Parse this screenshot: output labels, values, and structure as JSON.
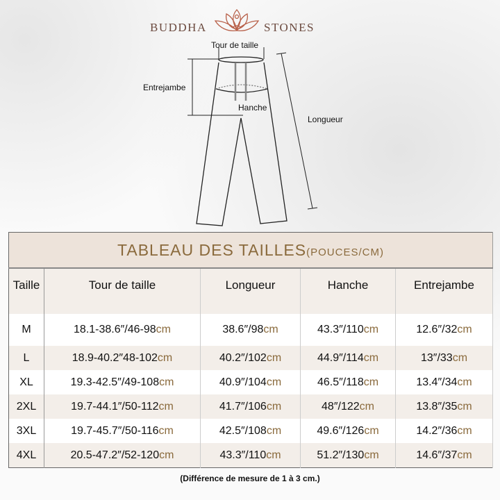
{
  "logo": {
    "left": "BUDDHA",
    "right": "STONES"
  },
  "diagram": {
    "waist": "Tour de taille",
    "inseam": "Entrejambe",
    "hip": "Hanche",
    "length": "Longueur"
  },
  "table": {
    "title": "TABLEAU DES TAILLES",
    "unit": "(POUCES/CM)",
    "headers": [
      "Taille",
      "Tour de taille",
      "Longueur",
      "Hanche",
      "Entrejambe"
    ],
    "unit_suffix": "cm",
    "rows": [
      [
        "M",
        "18.1-38.6″/46-98",
        "38.6″/98",
        "43.3″/110",
        "12.6″/32"
      ],
      [
        "L",
        "18.9-40.2″48-102",
        "40.2″/102",
        "44.9″/114",
        "13″/33"
      ],
      [
        "XL",
        "19.3-42.5″/49-108",
        "40.9″/104",
        "46.5″/118",
        "13.4″/34"
      ],
      [
        "2XL",
        "19.7-44.1″/50-112",
        "41.7″/106",
        "48″/122",
        "13.8″/35"
      ],
      [
        "3XL",
        "19.7-45.7″/50-116",
        "42.5″/108",
        "49.6″/126",
        "14.2″/36"
      ],
      [
        "4XL",
        "20.5-47.2″/52-120",
        "43.3″/110",
        "51.2″/130",
        "14.6″/37"
      ]
    ]
  },
  "note": "(Différence de mesure de 1 à 3 cm.)",
  "colors": {
    "accent": "#8a6a3c",
    "header_bg": "#ede3da",
    "logo": "#6b4a3f"
  }
}
